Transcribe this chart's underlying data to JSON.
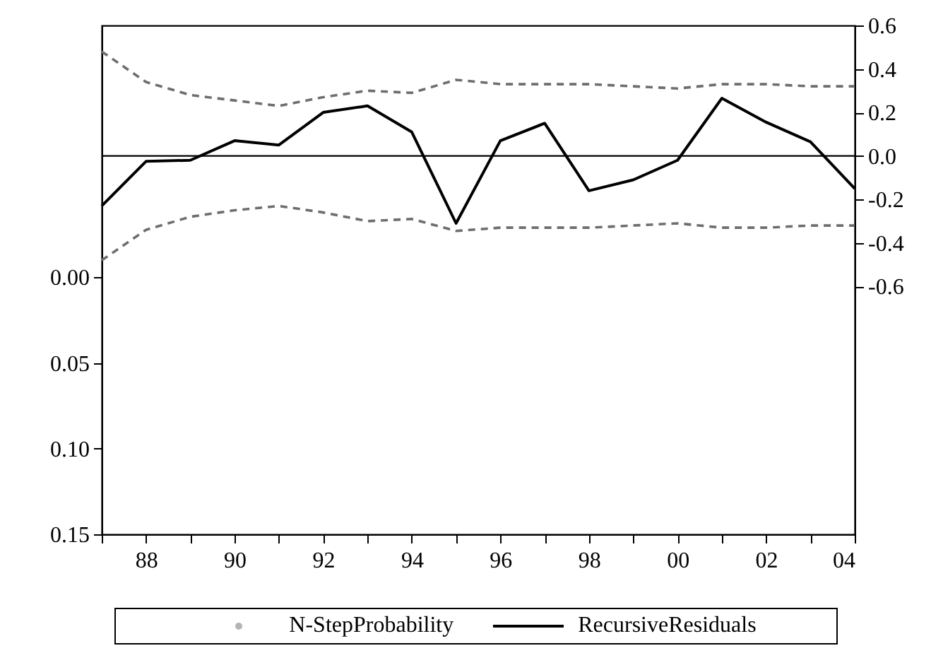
{
  "chart_data": {
    "type": "line",
    "x": [
      1987,
      1988,
      1989,
      1990,
      1991,
      1992,
      1993,
      1994,
      1995,
      1996,
      1997,
      1998,
      1999,
      2000,
      2001,
      2002,
      2003,
      2004
    ],
    "xlim": [
      1987,
      2004
    ],
    "xticks": [
      {
        "value": 1987,
        "label": null
      },
      {
        "value": 1988,
        "label": "88"
      },
      {
        "value": 1989,
        "label": null
      },
      {
        "value": 1990,
        "label": "90"
      },
      {
        "value": 1991,
        "label": null
      },
      {
        "value": 1992,
        "label": "92"
      },
      {
        "value": 1993,
        "label": null
      },
      {
        "value": 1994,
        "label": "94"
      },
      {
        "value": 1995,
        "label": null
      },
      {
        "value": 1996,
        "label": "96"
      },
      {
        "value": 1997,
        "label": null
      },
      {
        "value": 1998,
        "label": "98"
      },
      {
        "value": 1999,
        "label": null
      },
      {
        "value": 2000,
        "label": "00"
      },
      {
        "value": 2001,
        "label": null
      },
      {
        "value": 2002,
        "label": "02"
      },
      {
        "value": 2003,
        "label": null
      },
      {
        "value": 2004,
        "label": "04"
      }
    ],
    "ylim": [
      0.15,
      -0.147
    ],
    "yticks": [
      {
        "value": 0,
        "label": "0.00"
      },
      {
        "value": 0.05,
        "label": "0.05"
      },
      {
        "value": 0.1,
        "label": "0.10"
      },
      {
        "value": 0.15,
        "label": "0.15"
      }
    ],
    "y2lim": [
      -1.74,
      0.6
    ],
    "y2ticks": [
      {
        "value": 0.6,
        "label": "0.6"
      },
      {
        "value": 0.4,
        "label": "0.4"
      },
      {
        "value": 0.2,
        "label": "0.2"
      },
      {
        "value": 0,
        "label": "0.0"
      },
      {
        "value": -0.2,
        "label": "-0.2"
      },
      {
        "value": -0.4,
        "label": "-0.4"
      },
      {
        "value": -0.6,
        "label": "-0.6"
      }
    ],
    "grid": false,
    "legend": "bottom",
    "ref_lines": [
      {
        "axis": "y2",
        "value": 0,
        "color": "#000000"
      }
    ],
    "series": [
      {
        "name": "N-StepProbability",
        "type": "scatter",
        "marker": "circle",
        "color": "#b4b4b4",
        "values": [
          null,
          null,
          null,
          null,
          null,
          null,
          null,
          null,
          null,
          null,
          null,
          null,
          null,
          null,
          null,
          null,
          null,
          null
        ]
      },
      {
        "axis": "y2",
        "line_style": "dashed",
        "color": "#6e6e6e",
        "values": [
          0.48,
          0.34,
          0.28,
          0.255,
          0.23,
          0.27,
          0.3,
          0.29,
          0.35,
          0.33,
          0.33,
          0.33,
          0.32,
          0.31,
          0.33,
          0.33,
          0.32,
          0.32
        ]
      },
      {
        "axis": "y2",
        "line_style": "dashed",
        "color": "#6e6e6e",
        "values": [
          -0.48,
          -0.34,
          -0.28,
          -0.25,
          -0.23,
          -0.26,
          -0.3,
          -0.29,
          -0.345,
          -0.33,
          -0.33,
          -0.33,
          -0.32,
          -0.31,
          -0.33,
          -0.33,
          -0.32,
          -0.32
        ]
      },
      {
        "name": "RecursiveResiduals",
        "axis": "y2",
        "line_style": "solid",
        "color": "#000000",
        "values": [
          -0.23,
          -0.025,
          -0.02,
          0.07,
          0.05,
          0.2,
          0.23,
          0.11,
          -0.31,
          0.07,
          0.15,
          -0.16,
          -0.11,
          -0.02,
          0.265,
          0.155,
          0.065,
          -0.15
        ]
      }
    ]
  }
}
